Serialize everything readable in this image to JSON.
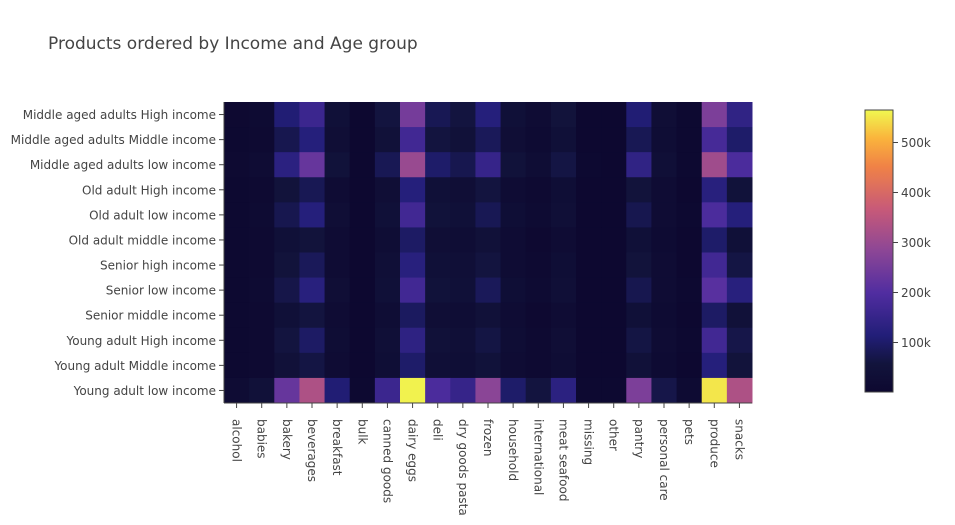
{
  "chart_data": {
    "type": "heatmap",
    "title": "Products ordered by Income and Age group",
    "xlabel": "",
    "ylabel": "",
    "x": [
      "alcohol",
      "babies",
      "bakery",
      "beverages",
      "breakfast",
      "bulk",
      "canned goods",
      "dairy eggs",
      "deli",
      "dry goods pasta",
      "frozen",
      "household",
      "international",
      "meat seafood",
      "missing",
      "other",
      "pantry",
      "personal care",
      "pets",
      "produce",
      "snacks"
    ],
    "y": [
      "Middle aged adults High income",
      "Middle aged adults Middle income",
      "Middle aged adults low income",
      "Old adult High income",
      "Old adult low income",
      "Old adult middle income",
      "Senior high income",
      "Senior low income",
      "Senior middle income",
      "Young adult High income",
      "Young adult Middle income",
      "Young adult low income"
    ],
    "z": [
      [
        8000,
        15000,
        110000,
        160000,
        40000,
        2000,
        60000,
        250000,
        80000,
        60000,
        120000,
        40000,
        20000,
        55000,
        3000,
        2000,
        110000,
        30000,
        5000,
        260000,
        140000
      ],
      [
        6000,
        12000,
        75000,
        120000,
        30000,
        2000,
        45000,
        170000,
        60000,
        45000,
        85000,
        30000,
        15000,
        40000,
        2000,
        2000,
        80000,
        25000,
        4000,
        180000,
        100000
      ],
      [
        9000,
        20000,
        130000,
        230000,
        50000,
        2000,
        80000,
        300000,
        100000,
        75000,
        150000,
        50000,
        25000,
        65000,
        4000,
        3000,
        140000,
        35000,
        6000,
        310000,
        190000
      ],
      [
        5000,
        10000,
        55000,
        80000,
        22000,
        1000,
        30000,
        120000,
        40000,
        30000,
        60000,
        22000,
        10000,
        28000,
        2000,
        2000,
        55000,
        18000,
        3000,
        125000,
        50000
      ],
      [
        6000,
        14000,
        75000,
        120000,
        30000,
        2000,
        40000,
        170000,
        50000,
        40000,
        80000,
        28000,
        15000,
        35000,
        3000,
        2000,
        75000,
        20000,
        4000,
        190000,
        120000
      ],
      [
        4000,
        9000,
        40000,
        55000,
        18000,
        1000,
        25000,
        95000,
        30000,
        25000,
        45000,
        18000,
        8000,
        22000,
        2000,
        1000,
        40000,
        15000,
        3000,
        100000,
        40000
      ],
      [
        5000,
        12000,
        55000,
        85000,
        22000,
        1000,
        32000,
        125000,
        40000,
        32000,
        60000,
        22000,
        10000,
        28000,
        2000,
        2000,
        55000,
        18000,
        3000,
        170000,
        65000
      ],
      [
        6000,
        14000,
        70000,
        125000,
        30000,
        2000,
        40000,
        170000,
        50000,
        40000,
        85000,
        28000,
        14000,
        35000,
        2000,
        2000,
        75000,
        22000,
        4000,
        210000,
        125000
      ],
      [
        4000,
        9000,
        40000,
        60000,
        18000,
        1000,
        25000,
        90000,
        30000,
        25000,
        45000,
        18000,
        8000,
        22000,
        2000,
        1000,
        40000,
        15000,
        3000,
        95000,
        45000
      ],
      [
        5000,
        12000,
        60000,
        95000,
        25000,
        1000,
        35000,
        135000,
        45000,
        35000,
        65000,
        24000,
        12000,
        30000,
        2000,
        2000,
        65000,
        20000,
        4000,
        170000,
        70000
      ],
      [
        4000,
        10000,
        45000,
        65000,
        20000,
        1000,
        28000,
        100000,
        35000,
        28000,
        50000,
        20000,
        10000,
        25000,
        2000,
        2000,
        45000,
        16000,
        3000,
        120000,
        55000
      ],
      [
        20000,
        45000,
        230000,
        330000,
        110000,
        5000,
        160000,
        560000,
        190000,
        150000,
        280000,
        100000,
        60000,
        130000,
        6000,
        6000,
        260000,
        70000,
        15000,
        550000,
        330000
      ]
    ],
    "zmin": 1000,
    "zmax": 565000,
    "colorbar_ticks": [
      100000,
      200000,
      300000,
      400000,
      500000
    ],
    "colorbar_tick_labels": [
      "100k",
      "200k",
      "300k",
      "400k",
      "500k"
    ],
    "colorscale": "plasma",
    "grid": false,
    "legend": "colorbar-right"
  }
}
